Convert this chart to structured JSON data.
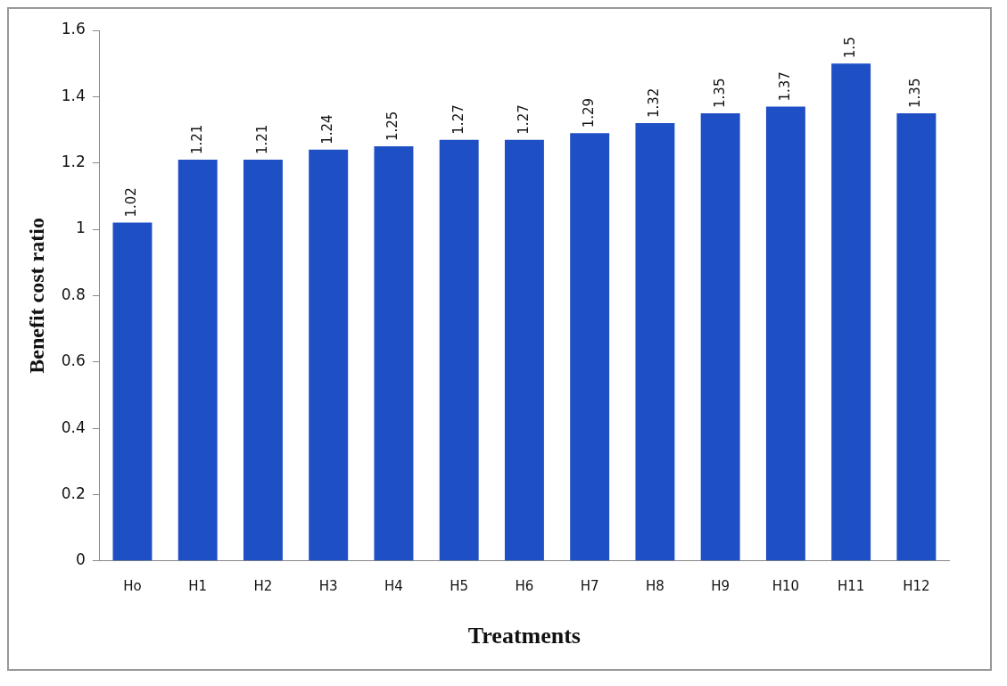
{
  "chart_data": {
    "type": "bar",
    "categories": [
      "Ho",
      "H1",
      "H2",
      "H3",
      "H4",
      "H5",
      "H6",
      "H7",
      "H8",
      "H9",
      "H10",
      "H11",
      "H12"
    ],
    "values": [
      1.02,
      1.21,
      1.21,
      1.24,
      1.25,
      1.27,
      1.27,
      1.29,
      1.32,
      1.35,
      1.37,
      1.5,
      1.35
    ],
    "color": "#1f4fc4",
    "xlabel": "Treatments",
    "ylabel": "Benefit cost ratio",
    "ylim": [
      0,
      1.6
    ],
    "yticks": [
      0,
      0.2,
      0.4,
      0.6,
      0.8,
      1,
      1.2,
      1.4,
      1.6
    ],
    "grid": false,
    "legend": false,
    "data_labels": true
  }
}
